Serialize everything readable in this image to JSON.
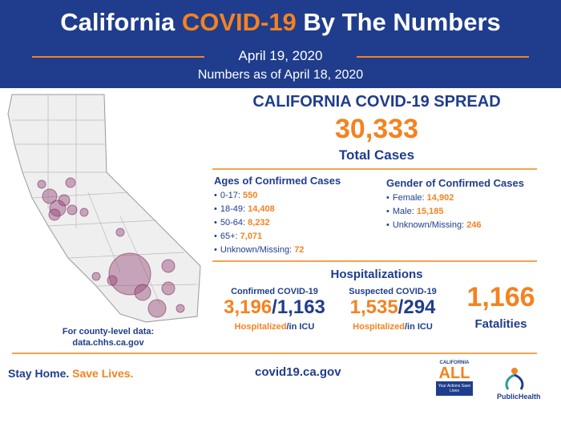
{
  "header": {
    "title": {
      "before": "California",
      "highlight": "COVID-19",
      "after": "By The Numbers"
    },
    "date": "April 19, 2020",
    "as_of": "Numbers as of April 18, 2020"
  },
  "spread": {
    "heading": "CALIFORNIA COVID-19 SPREAD",
    "total": "30,333",
    "total_label": "Total Cases"
  },
  "ages": {
    "heading": "Ages of Confirmed Cases",
    "items": [
      {
        "label": "0-17:",
        "value": "550"
      },
      {
        "label": "18-49:",
        "value": "14,408"
      },
      {
        "label": "50-64:",
        "value": "8,232"
      },
      {
        "label": "65+:",
        "value": "7,071"
      },
      {
        "label": "Unknown/Missing:",
        "value": "72"
      }
    ]
  },
  "gender": {
    "heading": "Gender of Confirmed Cases",
    "items": [
      {
        "label": "Female:",
        "value": "14,902"
      },
      {
        "label": "Male:",
        "value": "15,185"
      },
      {
        "label": "Unknown/Missing:",
        "value": "246"
      }
    ]
  },
  "hospitalizations": {
    "heading": "Hospitalizations",
    "confirmed": {
      "label": "Confirmed COVID-19",
      "hospitalized": "3,196",
      "sep": "/",
      "icu": "1,163",
      "hosp_label": "Hospitalized",
      "icu_label": "/in ICU"
    },
    "suspected": {
      "label": "Suspected COVID-19",
      "hospitalized": "1,535",
      "sep": "/",
      "icu": "294",
      "hosp_label": "Hospitalized",
      "icu_label": "/in ICU"
    },
    "fatalities": "1,166",
    "fatalities_label": "Fatalities"
  },
  "county": {
    "line1": "For county-level data:",
    "line2": "data.chhs.ca.gov"
  },
  "footer": {
    "stay": "Stay Home.",
    "save": "Save Lives.",
    "url": "covid19.ca.gov",
    "logo1": {
      "top": "CALIFORNIA",
      "main": "ALL",
      "sub": "Your Actions Save Lives"
    },
    "logo2": "PublicHealth"
  }
}
